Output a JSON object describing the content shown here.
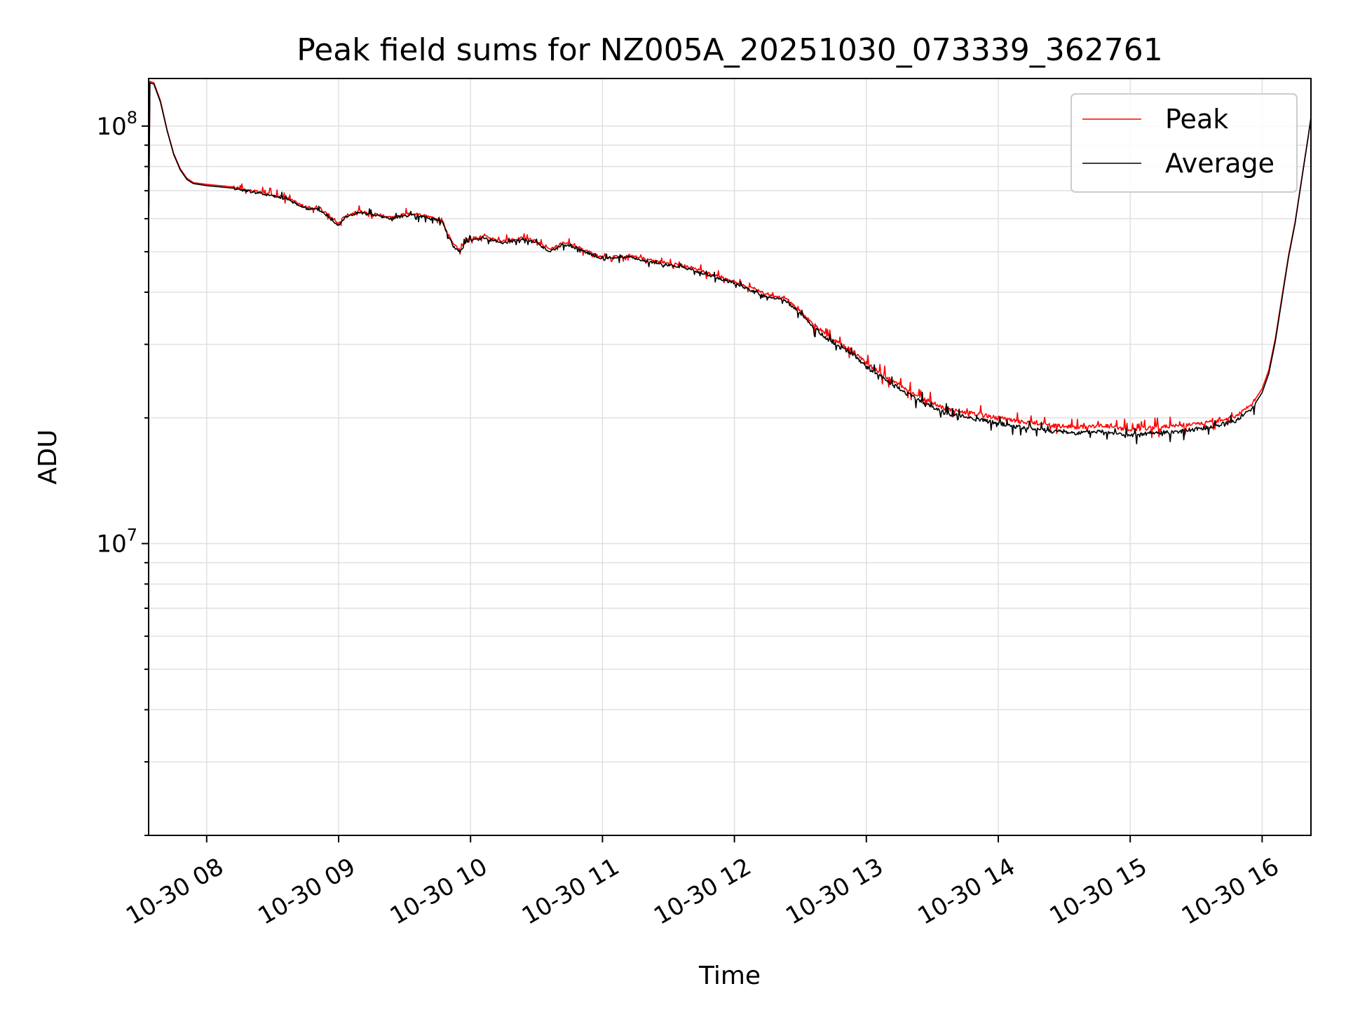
{
  "chart_data": {
    "type": "line",
    "title": "Peak field sums for NZ005A_20251030_073339_362761",
    "xlabel": "Time",
    "ylabel": "ADU",
    "yscale": "log",
    "xlim": [
      7.56,
      16.37
    ],
    "ylim": [
      2000000,
      130000000
    ],
    "grid": true,
    "legend_position": "upper-right",
    "x_ticks": [
      {
        "value": 8,
        "label": "10-30 08"
      },
      {
        "value": 9,
        "label": "10-30 09"
      },
      {
        "value": 10,
        "label": "10-30 10"
      },
      {
        "value": 11,
        "label": "10-30 11"
      },
      {
        "value": 12,
        "label": "10-30 12"
      },
      {
        "value": 13,
        "label": "10-30 13"
      },
      {
        "value": 14,
        "label": "10-30 14"
      },
      {
        "value": 15,
        "label": "10-30 15"
      },
      {
        "value": 16,
        "label": "10-30 16"
      }
    ],
    "y_ticks": [
      {
        "value": 10000000,
        "base": "10",
        "exp": "7"
      },
      {
        "value": 100000000,
        "base": "10",
        "exp": "8"
      }
    ],
    "x_unit": "hours on 2025-10-30 (local)",
    "series": [
      {
        "name": "Peak",
        "color": "#ff0000",
        "points": [
          [
            7.56,
            55000000
          ],
          [
            7.57,
            128000000
          ],
          [
            7.6,
            127000000
          ],
          [
            7.65,
            115000000
          ],
          [
            7.7,
            98000000
          ],
          [
            7.75,
            86000000
          ],
          [
            7.8,
            79000000
          ],
          [
            7.85,
            75000000
          ],
          [
            7.9,
            73200000
          ],
          [
            8.0,
            72500000
          ],
          [
            8.2,
            71500000
          ],
          [
            8.4,
            69500000
          ],
          [
            8.6,
            67500000
          ],
          [
            8.75,
            64000000
          ],
          [
            8.85,
            63500000
          ],
          [
            8.9,
            62000000
          ],
          [
            8.95,
            60000000
          ],
          [
            9.0,
            58500000
          ],
          [
            9.05,
            61000000
          ],
          [
            9.15,
            62500000
          ],
          [
            9.3,
            61500000
          ],
          [
            9.4,
            60500000
          ],
          [
            9.5,
            61500000
          ],
          [
            9.6,
            61500000
          ],
          [
            9.7,
            60500000
          ],
          [
            9.78,
            60000000
          ],
          [
            9.82,
            56000000
          ],
          [
            9.87,
            52000000
          ],
          [
            9.92,
            50500000
          ],
          [
            9.97,
            53500000
          ],
          [
            10.1,
            54500000
          ],
          [
            10.25,
            53000000
          ],
          [
            10.4,
            54000000
          ],
          [
            10.5,
            53000000
          ],
          [
            10.6,
            50500000
          ],
          [
            10.7,
            52500000
          ],
          [
            10.8,
            51500000
          ],
          [
            10.9,
            50000000
          ],
          [
            11.0,
            48500000
          ],
          [
            11.2,
            49000000
          ],
          [
            11.4,
            47500000
          ],
          [
            11.6,
            46500000
          ],
          [
            11.8,
            44500000
          ],
          [
            12.0,
            42500000
          ],
          [
            12.2,
            40000000
          ],
          [
            12.4,
            38500000
          ],
          [
            12.5,
            36000000
          ],
          [
            12.6,
            33500000
          ],
          [
            12.7,
            31500000
          ],
          [
            12.8,
            30000000
          ],
          [
            12.9,
            29000000
          ],
          [
            13.0,
            27000000
          ],
          [
            13.2,
            24500000
          ],
          [
            13.4,
            22500000
          ],
          [
            13.6,
            21000000
          ],
          [
            13.8,
            20500000
          ],
          [
            14.0,
            20000000
          ],
          [
            14.2,
            19500000
          ],
          [
            14.4,
            19200000
          ],
          [
            14.6,
            19000000
          ],
          [
            14.8,
            19200000
          ],
          [
            15.0,
            18700000
          ],
          [
            15.2,
            19000000
          ],
          [
            15.4,
            19200000
          ],
          [
            15.6,
            19500000
          ],
          [
            15.8,
            20200000
          ],
          [
            15.92,
            21500000
          ],
          [
            16.0,
            23500000
          ],
          [
            16.05,
            26000000
          ],
          [
            16.1,
            31000000
          ],
          [
            16.15,
            39000000
          ],
          [
            16.2,
            49000000
          ],
          [
            16.25,
            59000000
          ],
          [
            16.3,
            75000000
          ],
          [
            16.35,
            95000000
          ],
          [
            16.37,
            105000000
          ]
        ]
      },
      {
        "name": "Average",
        "color": "#000000",
        "points": [
          [
            7.56,
            55000000
          ],
          [
            7.57,
            127000000
          ],
          [
            7.6,
            126000000
          ],
          [
            7.65,
            114000000
          ],
          [
            7.7,
            97500000
          ],
          [
            7.75,
            85500000
          ],
          [
            7.8,
            78500000
          ],
          [
            7.85,
            74500000
          ],
          [
            7.9,
            72800000
          ],
          [
            8.0,
            72000000
          ],
          [
            8.2,
            71000000
          ],
          [
            8.4,
            69000000
          ],
          [
            8.6,
            67000000
          ],
          [
            8.75,
            63500000
          ],
          [
            8.85,
            63000000
          ],
          [
            8.9,
            61500000
          ],
          [
            8.95,
            59500000
          ],
          [
            9.0,
            58000000
          ],
          [
            9.05,
            60500000
          ],
          [
            9.15,
            62000000
          ],
          [
            9.3,
            61000000
          ],
          [
            9.4,
            60000000
          ],
          [
            9.5,
            61000000
          ],
          [
            9.6,
            61000000
          ],
          [
            9.7,
            60000000
          ],
          [
            9.78,
            59500000
          ],
          [
            9.82,
            55500000
          ],
          [
            9.87,
            51500000
          ],
          [
            9.92,
            50000000
          ],
          [
            9.97,
            53000000
          ],
          [
            10.1,
            54000000
          ],
          [
            10.25,
            52500000
          ],
          [
            10.4,
            53500000
          ],
          [
            10.5,
            52500000
          ],
          [
            10.6,
            50000000
          ],
          [
            10.7,
            52000000
          ],
          [
            10.8,
            51000000
          ],
          [
            10.9,
            49500000
          ],
          [
            11.0,
            48000000
          ],
          [
            11.2,
            48500000
          ],
          [
            11.4,
            47000000
          ],
          [
            11.6,
            46000000
          ],
          [
            11.8,
            44000000
          ],
          [
            12.0,
            42000000
          ],
          [
            12.2,
            39500000
          ],
          [
            12.4,
            38000000
          ],
          [
            12.5,
            35500000
          ],
          [
            12.6,
            33000000
          ],
          [
            12.7,
            31000000
          ],
          [
            12.8,
            29500000
          ],
          [
            12.9,
            28500000
          ],
          [
            13.0,
            26500000
          ],
          [
            13.2,
            24000000
          ],
          [
            13.4,
            22000000
          ],
          [
            13.6,
            20500000
          ],
          [
            13.8,
            20000000
          ],
          [
            14.0,
            19400000
          ],
          [
            14.2,
            18900000
          ],
          [
            14.4,
            18600000
          ],
          [
            14.6,
            18400000
          ],
          [
            14.8,
            18600000
          ],
          [
            15.0,
            18100000
          ],
          [
            15.2,
            18400000
          ],
          [
            15.4,
            18600000
          ],
          [
            15.6,
            19000000
          ],
          [
            15.8,
            19700000
          ],
          [
            15.92,
            21000000
          ],
          [
            16.0,
            23000000
          ],
          [
            16.05,
            25500000
          ],
          [
            16.1,
            30500000
          ],
          [
            16.15,
            38500000
          ],
          [
            16.2,
            48500000
          ],
          [
            16.25,
            58500000
          ],
          [
            16.3,
            74500000
          ],
          [
            16.35,
            94500000
          ],
          [
            16.37,
            104500000
          ]
        ]
      }
    ]
  }
}
